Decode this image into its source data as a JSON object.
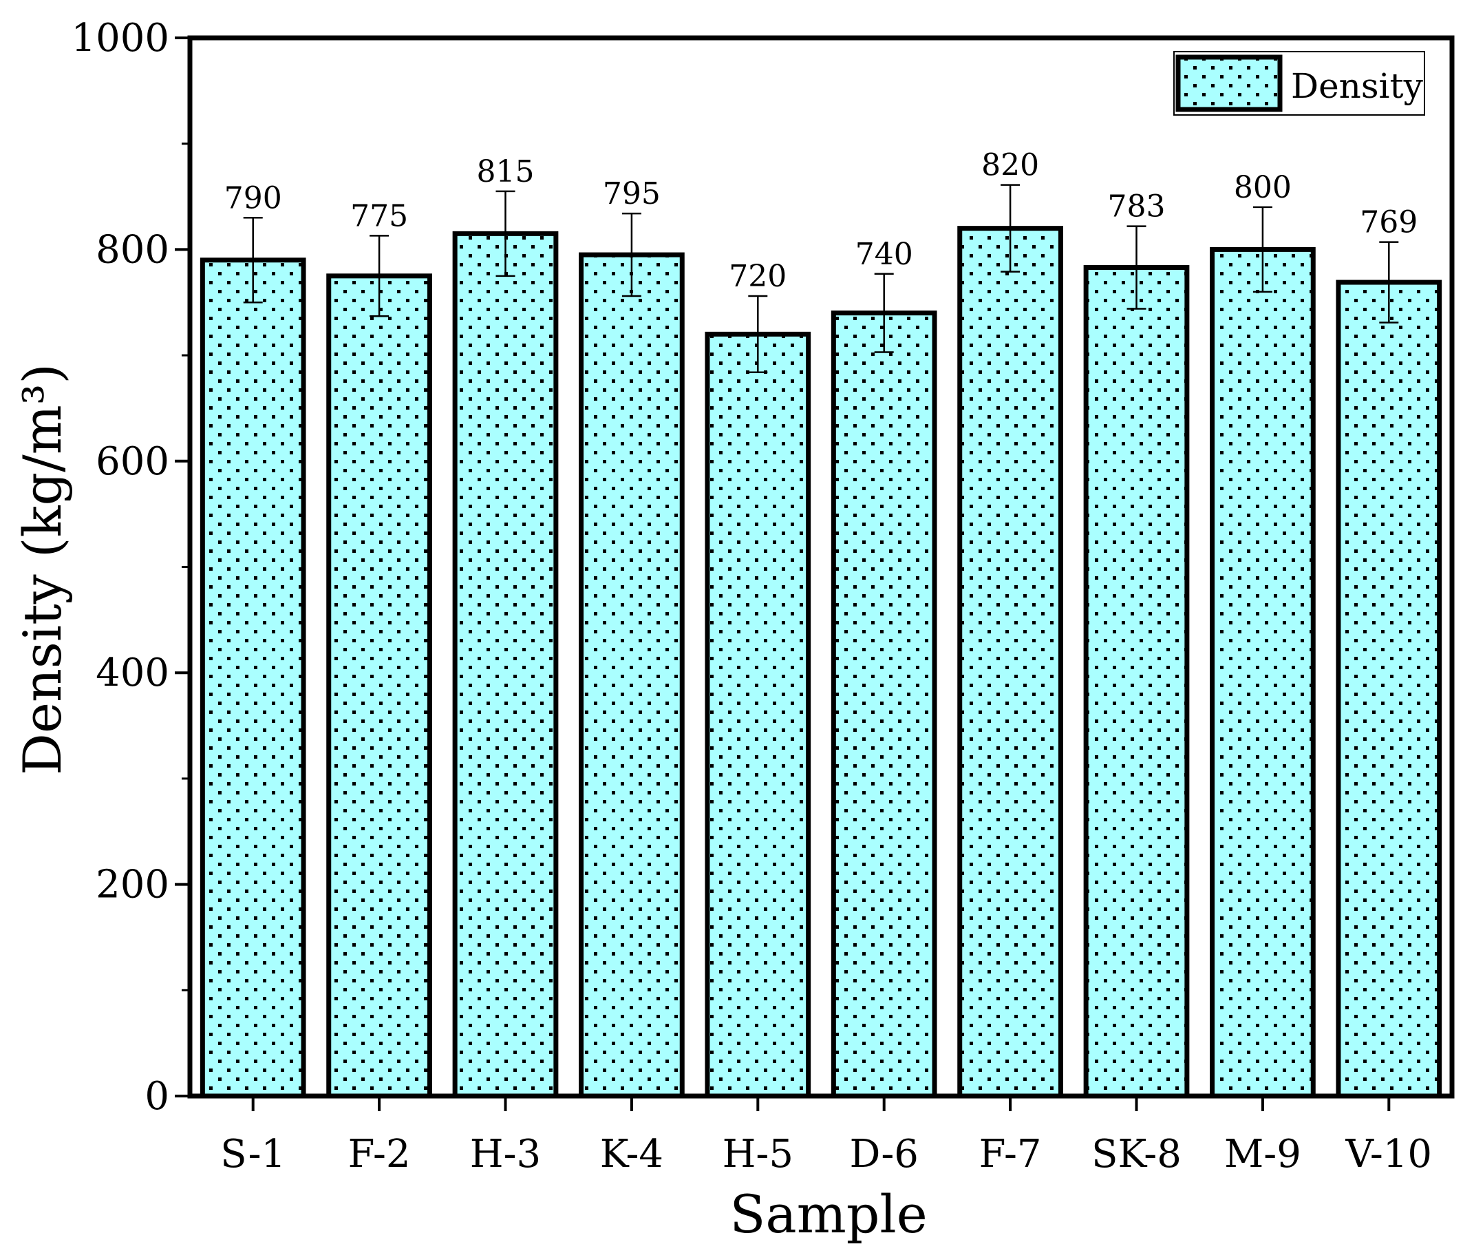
{
  "chart_data": {
    "type": "bar",
    "categories": [
      "S-1",
      "F-2",
      "H-3",
      "K-4",
      "H-5",
      "D-6",
      "F-7",
      "SK-8",
      "M-9",
      "V-10"
    ],
    "series": [
      {
        "name": "Density",
        "values": [
          790,
          775,
          815,
          795,
          720,
          740,
          820,
          783,
          800,
          769
        ],
        "errors": [
          40,
          38,
          40,
          39,
          36,
          37,
          41,
          39,
          40,
          38
        ],
        "value_labels": [
          "790",
          "775",
          "815",
          "795",
          "720",
          "740",
          "820",
          "783",
          "800",
          "769"
        ]
      }
    ],
    "title": "",
    "xlabel": "Sample",
    "ylabel": "Density (kg/m³)",
    "ylim": [
      0,
      1000
    ],
    "yticks": [
      0,
      200,
      400,
      600,
      800,
      1000
    ],
    "ytick_labels": [
      "0",
      "200",
      "400",
      "600",
      "800",
      "1000"
    ],
    "grid": false,
    "legend_position": "top-right",
    "colors": {
      "bar_fill": "#aaffff",
      "bar_edge": "#000000",
      "dot_pattern": "#000000",
      "axis": "#000000"
    }
  }
}
